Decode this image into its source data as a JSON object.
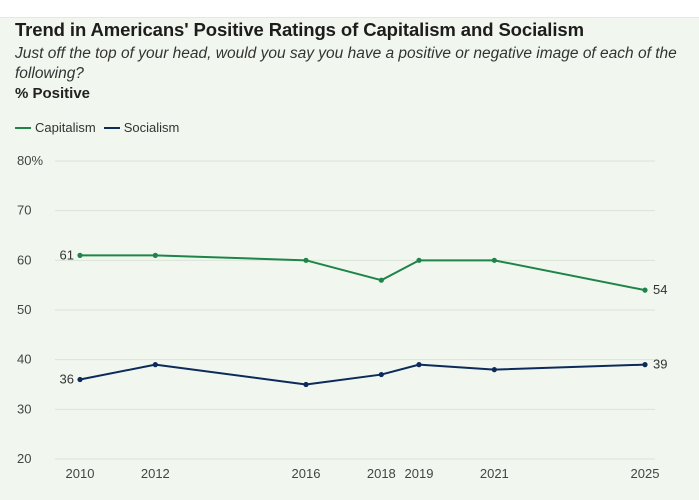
{
  "header": {
    "title": "Trend in Americans' Positive Ratings of Capitalism and Socialism",
    "subtitle": "Just off the top of your head, would you say you have a positive or negative image of each of the following?",
    "measure": "% Positive"
  },
  "chart_data": {
    "type": "line",
    "title": "Trend in Americans' Positive Ratings of Capitalism and Socialism",
    "xlabel": "",
    "ylabel": "% Positive",
    "x": [
      2010,
      2012,
      2016,
      2018,
      2019,
      2021,
      2025
    ],
    "ylim": [
      20,
      80
    ],
    "y_ticks": [
      20,
      30,
      40,
      50,
      60,
      70,
      80
    ],
    "y_tick_labels": [
      "20",
      "30",
      "40",
      "50",
      "60",
      "70",
      "80%"
    ],
    "x_tick_labels": [
      "2010",
      "2012",
      "2016",
      "2018",
      "2019",
      "2021",
      "2025"
    ],
    "grid": true,
    "legend_position": "top-left",
    "series": [
      {
        "name": "Capitalism",
        "color": "#1e8449",
        "values": [
          61,
          61,
          60,
          56,
          60,
          60,
          54
        ],
        "labels": {
          "start": "61",
          "end": "54"
        }
      },
      {
        "name": "Socialism",
        "color": "#0c2a5a",
        "values": [
          36,
          39,
          35,
          37,
          39,
          38,
          39
        ],
        "labels": {
          "start": "36",
          "end": "39"
        }
      }
    ]
  }
}
